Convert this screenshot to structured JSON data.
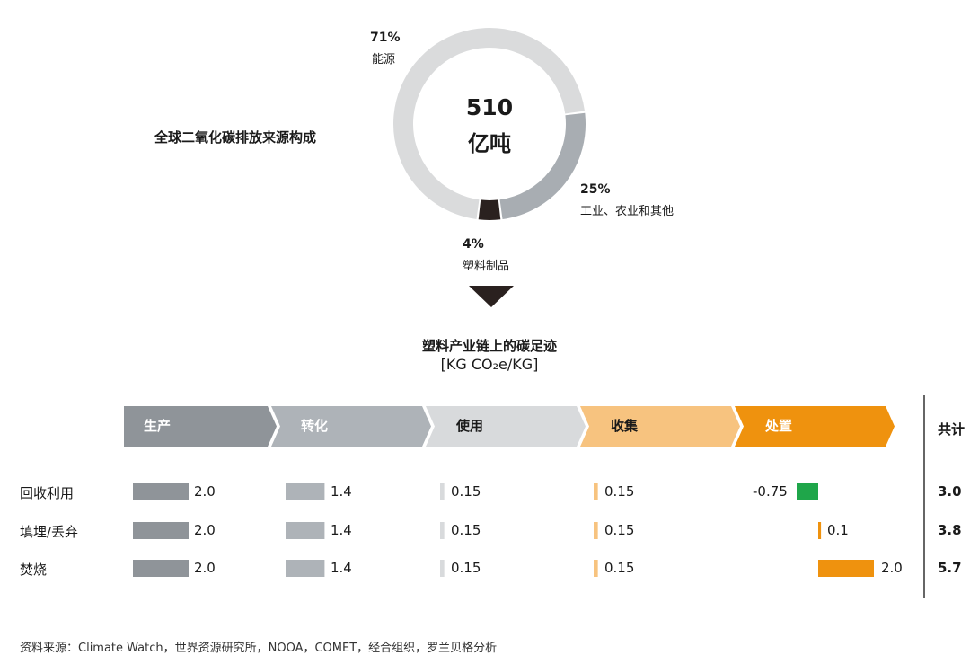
{
  "colors": {
    "energy": "#dadbdc",
    "industry": "#a8adb2",
    "plastic": "#2a211f",
    "stage_production": "#8f9499",
    "stage_conversion": "#aeb3b8",
    "stage_use": "#d8dadc",
    "stage_collection": "#f7c37f",
    "stage_disposal": "#ef920e",
    "negative": "#1fa64a"
  },
  "donut": {
    "title": "全球二氧化碳排放来源构成",
    "center_value": "510",
    "center_unit": "亿吨",
    "segments": [
      {
        "pct": "71%",
        "label": "能源"
      },
      {
        "pct": "25%",
        "label": "工业、农业和其他"
      },
      {
        "pct": "4%",
        "label": "塑料制品"
      }
    ]
  },
  "footprint": {
    "title": "塑料产业链上的碳足迹",
    "unit": "[KG CO₂e/KG]",
    "stages": [
      "生产",
      "转化",
      "使用",
      "收集",
      "处置"
    ],
    "total_header": "共计",
    "rows": [
      {
        "label": "回收利用",
        "values": [
          "2.0",
          "1.4",
          "0.15",
          "0.15",
          "-0.75"
        ],
        "total": "3.0"
      },
      {
        "label": "填埋/丢弃",
        "values": [
          "2.0",
          "1.4",
          "0.15",
          "0.15",
          "0.1"
        ],
        "total": "3.8"
      },
      {
        "label": "焚烧",
        "values": [
          "2.0",
          "1.4",
          "0.15",
          "0.15",
          "2.0"
        ],
        "total": "5.7"
      }
    ]
  },
  "source": "资料来源：Climate Watch，世界资源研究所，NOOA，COMET，经合组织，罗兰贝格分析",
  "chart_data": [
    {
      "type": "pie",
      "title": "全球二氧化碳排放来源构成",
      "categories": [
        "能源",
        "工业、农业和其他",
        "塑料制品"
      ],
      "values": [
        71,
        25,
        4
      ],
      "total": "510 亿吨"
    },
    {
      "type": "bar",
      "title": "塑料产业链上的碳足迹",
      "unit": "KG CO2e/KG",
      "categories": [
        "生产",
        "转化",
        "使用",
        "收集",
        "处置"
      ],
      "series": [
        {
          "name": "回收利用",
          "values": [
            2.0,
            1.4,
            0.15,
            0.15,
            -0.75
          ],
          "total": 3.0
        },
        {
          "name": "填埋/丢弃",
          "values": [
            2.0,
            1.4,
            0.15,
            0.15,
            0.1
          ],
          "total": 3.8
        },
        {
          "name": "焚烧",
          "values": [
            2.0,
            1.4,
            0.15,
            0.15,
            2.0
          ],
          "total": 5.7
        }
      ]
    }
  ]
}
